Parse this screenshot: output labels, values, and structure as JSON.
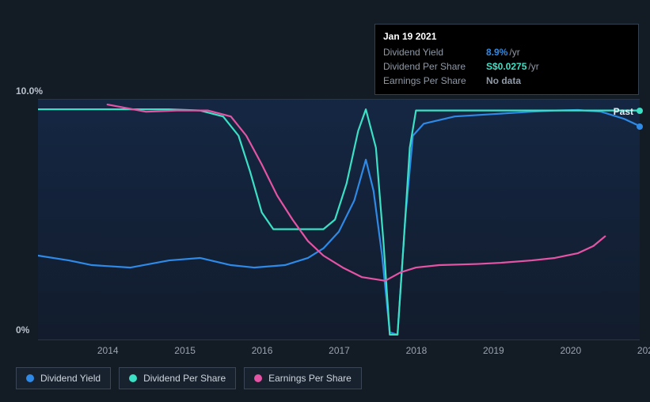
{
  "chart": {
    "type": "line",
    "background_color": "#131b25",
    "plot_gradient_top": "rgba(20,40,70,0.9)",
    "plot_gradient_bottom": "rgba(18,28,45,0.9)",
    "grid_color": "#2a3645",
    "ylim": [
      0,
      10
    ],
    "y_axis": {
      "top_label": "10.0%",
      "bottom_label": "0%",
      "label_color": "#b8c1cc",
      "label_fontsize": 12
    },
    "x_axis": {
      "years": [
        2014,
        2015,
        2016,
        2017,
        2018,
        2019,
        2020,
        "202.."
      ],
      "x_start": 2013.3,
      "x_end": 2021.1,
      "label_color": "#9aa4b0",
      "label_fontsize": 12
    },
    "past_label": "Past",
    "line_width": 2.2,
    "series": [
      {
        "name": "Dividend Yield",
        "color": "#2e8ae6",
        "end_dot_color": "#2e8ae6",
        "points": [
          [
            2013.3,
            3.5
          ],
          [
            2013.7,
            3.3
          ],
          [
            2014.0,
            3.1
          ],
          [
            2014.5,
            3.0
          ],
          [
            2015.0,
            3.3
          ],
          [
            2015.4,
            3.4
          ],
          [
            2015.8,
            3.1
          ],
          [
            2016.1,
            3.0
          ],
          [
            2016.5,
            3.1
          ],
          [
            2016.8,
            3.4
          ],
          [
            2017.0,
            3.8
          ],
          [
            2017.2,
            4.5
          ],
          [
            2017.4,
            5.8
          ],
          [
            2017.55,
            7.5
          ],
          [
            2017.65,
            6.2
          ],
          [
            2017.76,
            3.5
          ],
          [
            2017.86,
            0.3
          ],
          [
            2017.96,
            0.2
          ],
          [
            2018.06,
            5.0
          ],
          [
            2018.16,
            8.5
          ],
          [
            2018.3,
            9.0
          ],
          [
            2018.7,
            9.3
          ],
          [
            2019.2,
            9.4
          ],
          [
            2019.7,
            9.5
          ],
          [
            2020.0,
            9.55
          ],
          [
            2020.3,
            9.57
          ],
          [
            2020.6,
            9.5
          ],
          [
            2020.9,
            9.2
          ],
          [
            2021.1,
            8.9
          ]
        ]
      },
      {
        "name": "Dividend Per Share",
        "color": "#3be0c5",
        "end_dot_color": "#3be0c5",
        "points": [
          [
            2013.3,
            9.6
          ],
          [
            2014.0,
            9.6
          ],
          [
            2014.5,
            9.6
          ],
          [
            2015.0,
            9.6
          ],
          [
            2015.4,
            9.55
          ],
          [
            2015.7,
            9.3
          ],
          [
            2015.9,
            8.5
          ],
          [
            2016.05,
            7.0
          ],
          [
            2016.2,
            5.3
          ],
          [
            2016.35,
            4.6
          ],
          [
            2016.6,
            4.6
          ],
          [
            2017.0,
            4.6
          ],
          [
            2017.15,
            5.0
          ],
          [
            2017.3,
            6.5
          ],
          [
            2017.45,
            8.7
          ],
          [
            2017.55,
            9.6
          ],
          [
            2017.68,
            8.0
          ],
          [
            2017.78,
            4.0
          ],
          [
            2017.86,
            0.2
          ],
          [
            2017.96,
            0.2
          ],
          [
            2018.04,
            4.0
          ],
          [
            2018.12,
            8.0
          ],
          [
            2018.2,
            9.55
          ],
          [
            2018.5,
            9.55
          ],
          [
            2019.0,
            9.55
          ],
          [
            2020.0,
            9.55
          ],
          [
            2021.1,
            9.55
          ]
        ]
      },
      {
        "name": "Earnings Per Share",
        "color": "#e554a4",
        "end_dot_color": "#e554a4",
        "points": [
          [
            2014.2,
            9.8
          ],
          [
            2014.7,
            9.5
          ],
          [
            2015.1,
            9.55
          ],
          [
            2015.5,
            9.55
          ],
          [
            2015.8,
            9.3
          ],
          [
            2016.0,
            8.5
          ],
          [
            2016.2,
            7.3
          ],
          [
            2016.4,
            6.0
          ],
          [
            2016.6,
            5.0
          ],
          [
            2016.8,
            4.1
          ],
          [
            2017.0,
            3.5
          ],
          [
            2017.25,
            3.0
          ],
          [
            2017.5,
            2.6
          ],
          [
            2017.8,
            2.45
          ],
          [
            2018.0,
            2.8
          ],
          [
            2018.2,
            3.0
          ],
          [
            2018.5,
            3.1
          ],
          [
            2019.0,
            3.15
          ],
          [
            2019.3,
            3.2
          ],
          [
            2019.7,
            3.3
          ],
          [
            2020.0,
            3.4
          ],
          [
            2020.3,
            3.6
          ],
          [
            2020.5,
            3.9
          ],
          [
            2020.65,
            4.3
          ]
        ]
      }
    ]
  },
  "tooltip": {
    "date": "Jan 19 2021",
    "rows": [
      {
        "label": "Dividend Yield",
        "value": "8.9%",
        "suffix": "/yr",
        "color": "#2e8ae6"
      },
      {
        "label": "Dividend Per Share",
        "value": "S$0.0275",
        "suffix": "/yr",
        "color": "#3be0c5"
      },
      {
        "label": "Earnings Per Share",
        "value": "No data",
        "suffix": "",
        "color": "#8f99a6"
      }
    ],
    "bg": "#000000",
    "border": "#33404f",
    "label_color": "#8f99a6",
    "title_color": "#ffffff"
  },
  "legend": {
    "items": [
      {
        "label": "Dividend Yield",
        "color": "#2e8ae6"
      },
      {
        "label": "Dividend Per Share",
        "color": "#3be0c5"
      },
      {
        "label": "Earnings Per Share",
        "color": "#e554a4"
      }
    ],
    "border_color": "#3a4655",
    "bg_color": "#18222f",
    "text_color": "#cdd4dc"
  }
}
